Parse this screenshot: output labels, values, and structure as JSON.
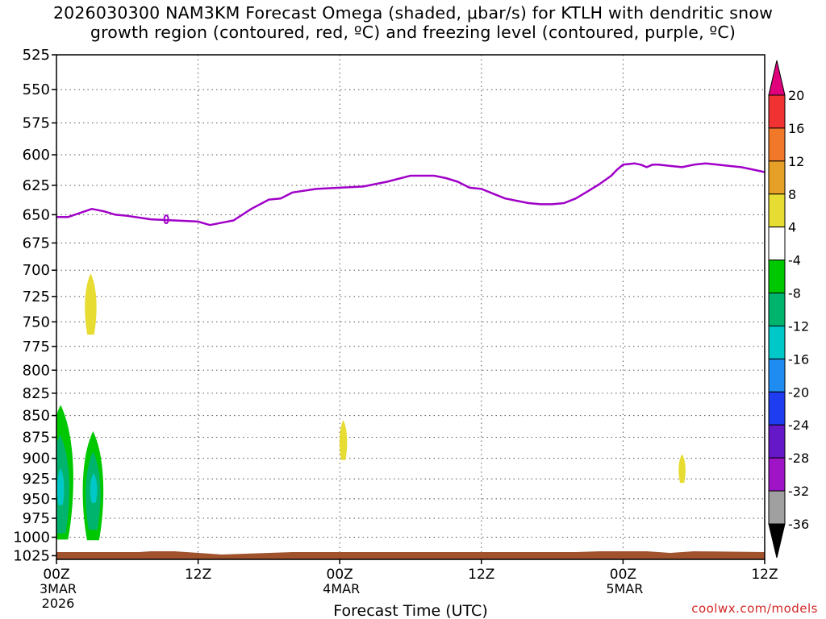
{
  "title_line1": "2026030300 NAM3KM Forecast Omega (shaded, μbar/s) for KTLH with dendritic snow",
  "title_line2": "growth region (contoured, red, ºC) and freezing level (contoured, purple, ºC)",
  "credit": "coolwx.com/models",
  "chart_data": {
    "type": "heatmap",
    "xlabel": "Forecast Time (UTC)",
    "y_axis_scale": "pressure (inverted, log-like)",
    "ylim": [
      1030,
      525
    ],
    "xlim_hours": [
      0,
      60
    ],
    "y_ticks": [
      "525",
      "550",
      "575",
      "600",
      "625",
      "650",
      "675",
      "700",
      "725",
      "750",
      "775",
      "800",
      "825",
      "850",
      "875",
      "900",
      "925",
      "950",
      "975",
      "1000",
      "1025"
    ],
    "x_ticks": [
      {
        "hour": 0,
        "lines": [
          "00Z",
          "3MAR",
          "2026"
        ]
      },
      {
        "hour": 12,
        "lines": [
          "12Z"
        ]
      },
      {
        "hour": 24,
        "lines": [
          "00Z",
          "4MAR"
        ]
      },
      {
        "hour": 36,
        "lines": [
          "12Z"
        ]
      },
      {
        "hour": 48,
        "lines": [
          "00Z",
          "5MAR"
        ]
      },
      {
        "hour": 60,
        "lines": [
          "12Z"
        ]
      }
    ],
    "grid": true,
    "colorbar": {
      "position": "right",
      "labels": [
        "20",
        "16",
        "12",
        "8",
        "4",
        "-4",
        "-8",
        "-12",
        "-16",
        "-20",
        "-24",
        "-28",
        "-32",
        "-36"
      ],
      "colors": [
        "#e0007c",
        "#f03232",
        "#f07828",
        "#e6a028",
        "#e6dc32",
        "#ffffff",
        "#00c800",
        "#00b46e",
        "#00c8c8",
        "#1e8cf0",
        "#1e3cf0",
        "#6418c8",
        "#a014c8",
        "#a0a0a0",
        "#000000"
      ]
    },
    "freezing_level": {
      "name": "freezing level",
      "color": "#a000c8",
      "hours": [
        0,
        1,
        3,
        4,
        5,
        6,
        8,
        10,
        12,
        13,
        14,
        15,
        16.5,
        18,
        19,
        20,
        22,
        24,
        26,
        28,
        30,
        31,
        32,
        33,
        34,
        35,
        36,
        37,
        38,
        39,
        40,
        41,
        42,
        43,
        44,
        45,
        46,
        47,
        47.5,
        48,
        49,
        49.5,
        50,
        50.5,
        51,
        52,
        53,
        54,
        55,
        56,
        57,
        58,
        59,
        60
      ],
      "pressure": [
        652,
        652,
        645,
        647,
        650,
        651,
        654,
        655,
        656,
        659,
        657,
        655,
        645,
        637,
        636,
        631,
        628,
        627,
        626,
        622,
        617,
        617,
        617,
        619,
        622,
        627,
        628,
        632,
        636,
        638,
        640,
        641,
        641,
        640,
        636,
        630,
        624,
        617,
        612,
        608,
        607,
        608,
        610,
        608,
        608,
        609,
        610,
        608,
        607,
        608,
        609,
        610,
        612,
        614
      ]
    },
    "omega_regions": [
      {
        "value": -6,
        "color": "#00c800",
        "center_hour": 0.35,
        "p_min": 838,
        "p_max": 1003
      },
      {
        "value": -10,
        "color": "#00b46e",
        "center_hour": 0.3,
        "p_min": 872,
        "p_max": 995
      },
      {
        "value": -14,
        "color": "#00c8c8",
        "center_hour": 0.35,
        "p_min": 912,
        "p_max": 958
      },
      {
        "value": -6,
        "color": "#00c800",
        "center_hour": 3.1,
        "p_min": 868,
        "p_max": 1004
      },
      {
        "value": -10,
        "color": "#00b46e",
        "center_hour": 3.1,
        "p_min": 892,
        "p_max": 990
      },
      {
        "value": -14,
        "color": "#00c8c8",
        "center_hour": 3.15,
        "p_min": 918,
        "p_max": 955
      },
      {
        "value": 5,
        "color": "#e6dc32",
        "center_hour": 2.9,
        "p_min": 703,
        "p_max": 763
      },
      {
        "value": 5,
        "color": "#e6dc32",
        "center_hour": 24.3,
        "p_min": 855,
        "p_max": 902
      },
      {
        "value": 5,
        "color": "#e6dc32",
        "center_hour": 53.0,
        "p_min": 895,
        "p_max": 930
      }
    ],
    "surface_band": {
      "name": "terrain",
      "color": "#a0522d",
      "p_top": 1020
    }
  }
}
